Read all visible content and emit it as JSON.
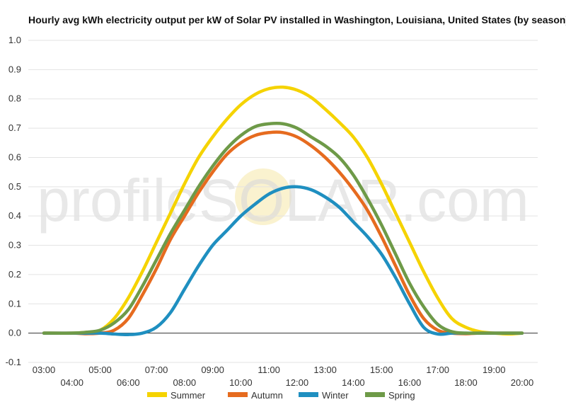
{
  "watermark": {
    "prefix": "profile",
    "brand": "SOLAR",
    "suffix": ".com",
    "sun_color": "#f6e7a8"
  },
  "chart_data": {
    "type": "line",
    "title": "Hourly avg kWh electricity output per kW of Solar PV installed in Washington, Louisiana, United States (by season)",
    "xlabel": "",
    "ylabel": "",
    "ylim": [
      -0.1,
      1.0
    ],
    "yticks": [
      -0.1,
      0.0,
      0.1,
      0.2,
      0.3,
      0.4,
      0.5,
      0.6,
      0.7,
      0.8,
      0.9,
      1.0
    ],
    "ytick_labels": [
      "-0.1",
      "0.0",
      "0.1",
      "0.2",
      "0.3",
      "0.4",
      "0.5",
      "0.6",
      "0.7",
      "0.8",
      "0.9",
      "1.0"
    ],
    "x_hours": [
      3,
      4,
      5,
      6,
      7,
      8,
      9,
      10,
      11,
      12,
      13,
      14,
      15,
      16,
      17,
      18,
      19,
      20
    ],
    "x_labels": [
      "03:00",
      "04:00",
      "05:00",
      "06:00",
      "07:00",
      "08:00",
      "09:00",
      "10:00",
      "11:00",
      "12:00",
      "13:00",
      "14:00",
      "15:00",
      "16:00",
      "17:00",
      "18:00",
      "19:00",
      "20:00"
    ],
    "grid": true,
    "legend_position": "bottom",
    "series": [
      {
        "name": "Summer",
        "color": "#f5d300",
        "x": [
          3.0,
          4.0,
          4.5,
          5.0,
          5.5,
          6.0,
          6.5,
          7.0,
          7.5,
          8.0,
          8.5,
          9.0,
          9.5,
          10.0,
          10.5,
          11.0,
          11.5,
          12.0,
          12.5,
          13.0,
          13.5,
          14.0,
          14.5,
          15.0,
          15.5,
          16.0,
          16.5,
          17.0,
          17.5,
          18.0,
          18.5,
          19.0,
          19.5,
          20.0
        ],
        "y": [
          0.0,
          0.0,
          0.003,
          0.01,
          0.05,
          0.12,
          0.21,
          0.31,
          0.41,
          0.51,
          0.6,
          0.67,
          0.73,
          0.78,
          0.815,
          0.835,
          0.84,
          0.83,
          0.805,
          0.765,
          0.72,
          0.67,
          0.6,
          0.51,
          0.41,
          0.31,
          0.21,
          0.12,
          0.05,
          0.02,
          0.005,
          0.0,
          -0.003,
          0.0
        ]
      },
      {
        "name": "Autumn",
        "color": "#e66b1f",
        "x": [
          3.0,
          4.0,
          4.5,
          5.0,
          5.5,
          6.0,
          6.5,
          7.0,
          7.5,
          8.0,
          8.5,
          9.0,
          9.5,
          10.0,
          10.5,
          11.0,
          11.5,
          12.0,
          12.5,
          13.0,
          13.5,
          14.0,
          14.5,
          15.0,
          15.5,
          16.0,
          16.5,
          17.0,
          17.5,
          18.0,
          18.5,
          19.0,
          19.5,
          20.0
        ],
        "y": [
          0.0,
          0.0,
          -0.002,
          0.0,
          0.01,
          0.05,
          0.13,
          0.22,
          0.32,
          0.4,
          0.48,
          0.55,
          0.61,
          0.65,
          0.675,
          0.685,
          0.685,
          0.67,
          0.64,
          0.6,
          0.55,
          0.49,
          0.42,
          0.33,
          0.23,
          0.13,
          0.05,
          0.01,
          0.0,
          -0.002,
          0.0,
          0.0,
          0.0,
          0.0
        ]
      },
      {
        "name": "Winter",
        "color": "#1f8fc0",
        "x": [
          3.0,
          4.0,
          4.5,
          5.0,
          5.5,
          6.0,
          6.5,
          7.0,
          7.5,
          8.0,
          8.5,
          9.0,
          9.5,
          10.0,
          10.5,
          11.0,
          11.5,
          12.0,
          12.5,
          13.0,
          13.5,
          14.0,
          14.5,
          15.0,
          15.5,
          16.0,
          16.5,
          17.0,
          17.5,
          18.0,
          18.5,
          19.0,
          19.5,
          20.0
        ],
        "y": [
          0.0,
          0.0,
          0.0,
          0.0,
          -0.003,
          -0.005,
          0.0,
          0.02,
          0.07,
          0.15,
          0.23,
          0.3,
          0.35,
          0.4,
          0.44,
          0.475,
          0.495,
          0.5,
          0.49,
          0.465,
          0.43,
          0.38,
          0.33,
          0.27,
          0.19,
          0.1,
          0.02,
          -0.003,
          0.0,
          0.0,
          0.0,
          0.0,
          0.0,
          0.0
        ]
      },
      {
        "name": "Spring",
        "color": "#6e9a48",
        "x": [
          3.0,
          4.0,
          4.5,
          5.0,
          5.5,
          6.0,
          6.5,
          7.0,
          7.5,
          8.0,
          8.5,
          9.0,
          9.5,
          10.0,
          10.5,
          11.0,
          11.5,
          12.0,
          12.5,
          13.0,
          13.5,
          14.0,
          14.5,
          15.0,
          15.5,
          16.0,
          16.5,
          17.0,
          17.5,
          18.0,
          18.5,
          19.0,
          19.5,
          20.0
        ],
        "y": [
          0.0,
          0.0,
          0.003,
          0.01,
          0.035,
          0.08,
          0.16,
          0.25,
          0.34,
          0.42,
          0.5,
          0.57,
          0.63,
          0.675,
          0.705,
          0.715,
          0.715,
          0.7,
          0.67,
          0.64,
          0.6,
          0.54,
          0.46,
          0.37,
          0.27,
          0.17,
          0.09,
          0.03,
          0.005,
          0.0,
          0.0,
          0.0,
          0.0,
          0.0
        ]
      }
    ]
  }
}
